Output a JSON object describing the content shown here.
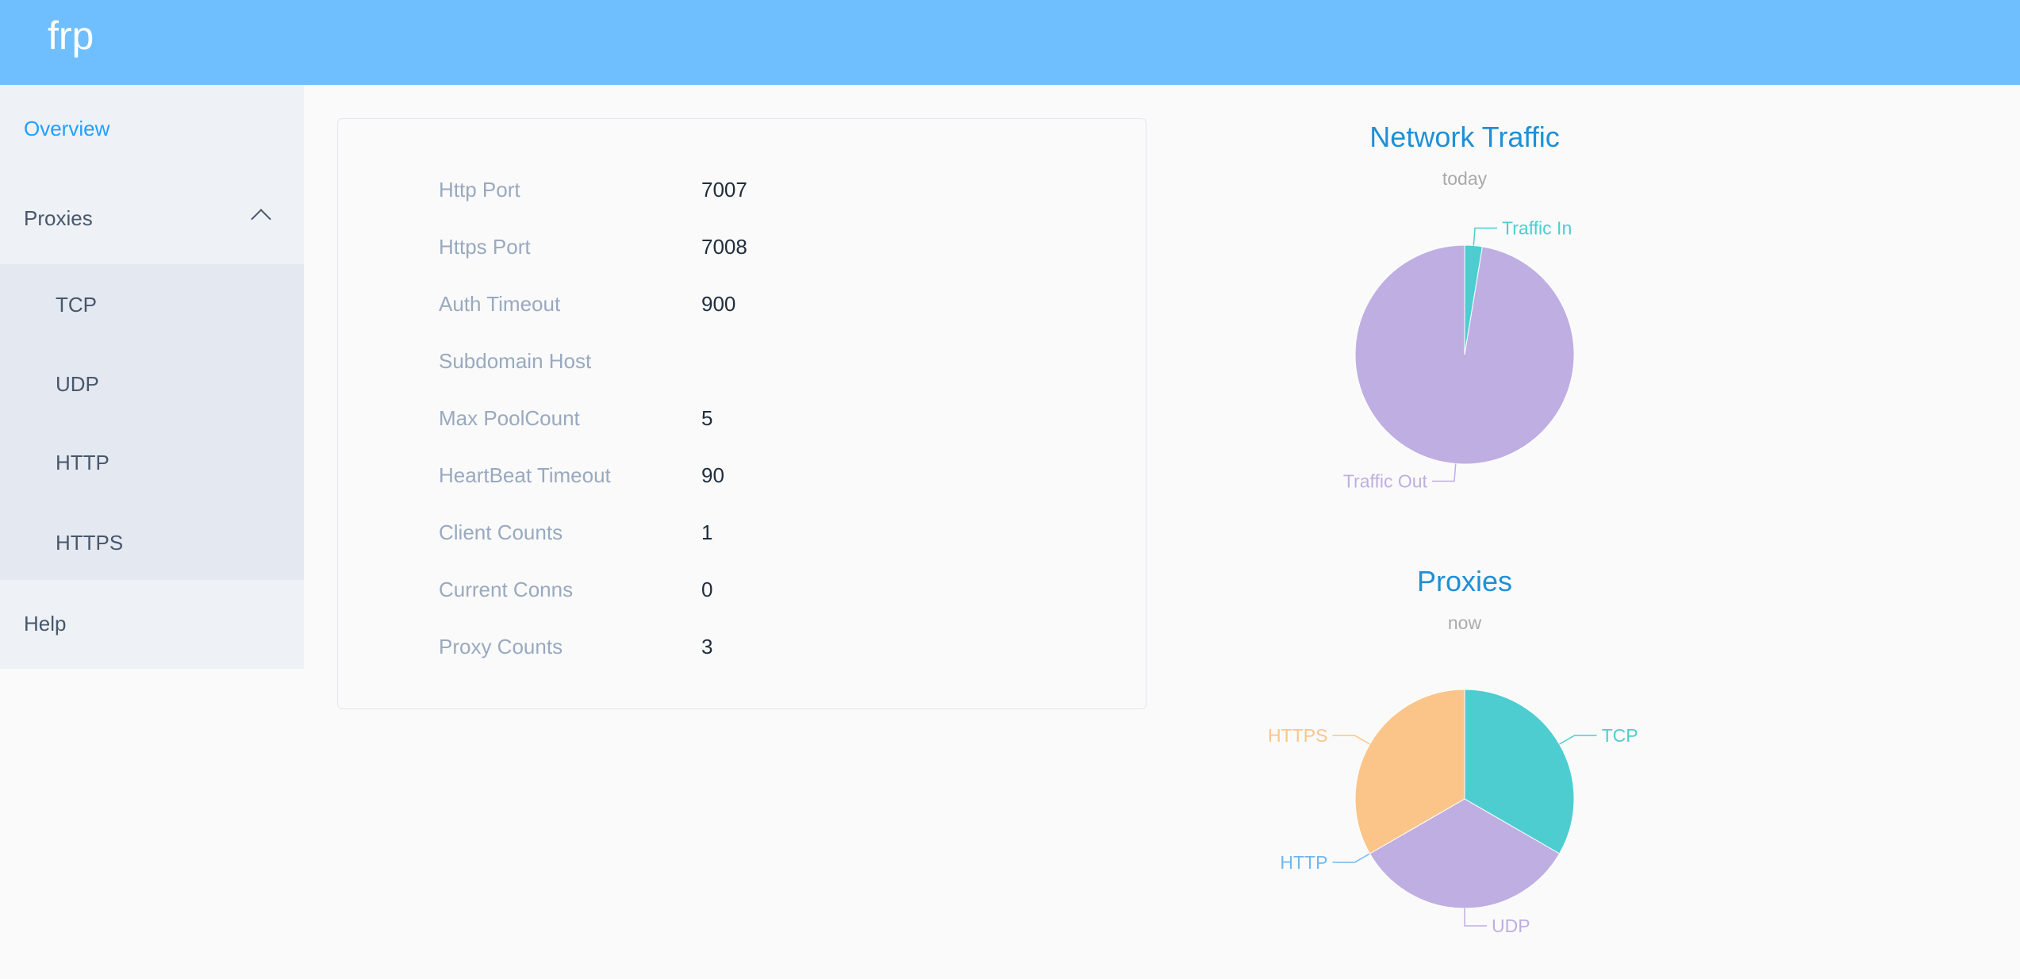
{
  "header": {
    "logo": "frp"
  },
  "sidebar": {
    "overview": "Overview",
    "proxies": "Proxies",
    "sub": [
      "TCP",
      "UDP",
      "HTTP",
      "HTTPS"
    ],
    "help": "Help"
  },
  "info": [
    {
      "label": "Http Port",
      "value": "7007"
    },
    {
      "label": "Https Port",
      "value": "7008"
    },
    {
      "label": "Auth Timeout",
      "value": "900"
    },
    {
      "label": "Subdomain Host",
      "value": ""
    },
    {
      "label": "Max PoolCount",
      "value": "5"
    },
    {
      "label": "HeartBeat Timeout",
      "value": "90"
    },
    {
      "label": "Client Counts",
      "value": "1"
    },
    {
      "label": "Current Conns",
      "value": "0"
    },
    {
      "label": "Proxy Counts",
      "value": "3"
    }
  ],
  "chart_data": [
    {
      "type": "pie",
      "title": "Network Traffic",
      "subtitle": "today",
      "categories": [
        "Traffic In",
        "Traffic Out"
      ],
      "values": [
        2.6,
        97.4
      ],
      "colors": [
        "#4ecdd1",
        "#bfaee2"
      ],
      "legend": "none"
    },
    {
      "type": "pie",
      "title": "Proxies",
      "subtitle": "now",
      "categories": [
        "TCP",
        "UDP",
        "HTTP",
        "HTTPS"
      ],
      "values": [
        1,
        1,
        0,
        1
      ],
      "colors": [
        "#4ecdd1",
        "#bfaee2",
        "#6fb8f0",
        "#fbc58a"
      ],
      "legend": "none"
    }
  ]
}
